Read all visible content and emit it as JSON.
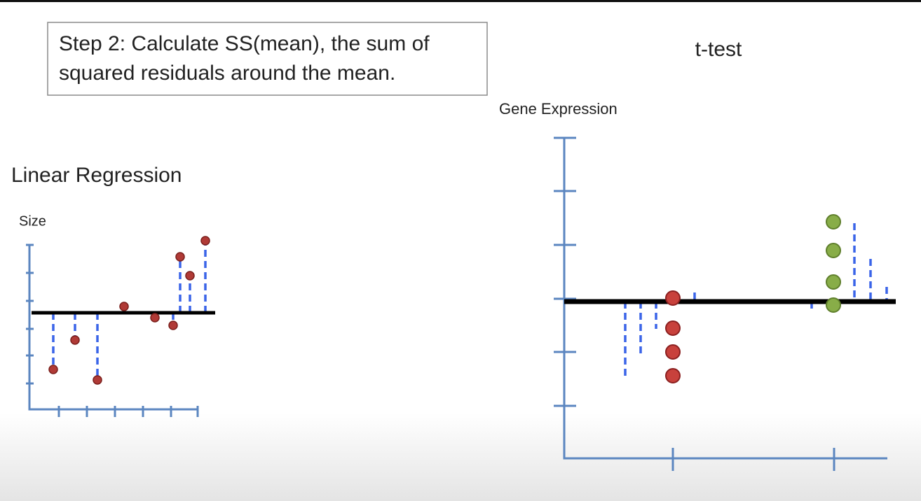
{
  "slide": {
    "step_box": {
      "line1": "Step 2: Calculate SS(mean), the sum of",
      "line2": "squared residuals around the mean."
    },
    "left_panel": {
      "title": "Linear Regression",
      "y_label": "Size"
    },
    "right_panel": {
      "title": "t-test",
      "y_label": "Gene Expression"
    }
  }
}
